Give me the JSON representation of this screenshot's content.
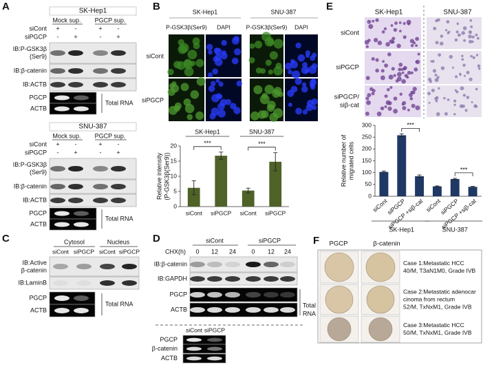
{
  "panels": {
    "A": {
      "label": "A",
      "blocks": [
        {
          "cell": "SK-Hep1",
          "headers": [
            "Mock sup.",
            "PGCP sup."
          ],
          "rows": [
            {
              "name": "siCont",
              "marks": [
                "+",
                "-",
                "+",
                "-"
              ]
            },
            {
              "name": "siPGCP",
              "marks": [
                "-",
                "+",
                "-",
                "+"
              ]
            }
          ],
          "blots": [
            [
              "IB:P-GSK3β",
              "(Ser9)"
            ],
            [
              "IB:β-catenin"
            ],
            [
              "IB:ACTB"
            ]
          ],
          "rna": [
            "PGCP",
            "ACTB"
          ],
          "rna_label": [
            "Total RNA"
          ]
        },
        {
          "cell": "SNU-387",
          "headers": [
            "Mock sup.",
            "PGCP sup."
          ],
          "rows": [
            {
              "name": "siCont",
              "marks": [
                "+",
                "-",
                "+",
                "-"
              ]
            },
            {
              "name": "siPGCP",
              "marks": [
                "-",
                "+",
                "-",
                "+"
              ]
            }
          ],
          "blots": [
            [
              "IB:P-GSK3β",
              "(Ser9)"
            ],
            [
              "IB:β-catenin"
            ],
            [
              "IB:ACTB"
            ]
          ],
          "rna": [
            "PGCP",
            "ACTB"
          ],
          "rna_label": [
            "Total RNA"
          ]
        }
      ]
    },
    "B": {
      "label": "B",
      "cells": [
        "SK-Hep1",
        "SNU-387"
      ],
      "stains": [
        "P-GSK3β(Ser9)",
        "DAPI",
        "P-GSK3β(Ser9)",
        "DAPI"
      ],
      "rows": [
        "siCont",
        "siPGCP"
      ]
    },
    "C": {
      "label": "C",
      "fractions": [
        "Cytosol",
        "Nucleus"
      ],
      "lanes": [
        "siCont",
        "siPGCP",
        "siCont",
        "siPGCP"
      ],
      "blots": [
        [
          "IB:Active",
          "β-catenin"
        ],
        [
          "IB:LaminB"
        ]
      ],
      "rna": [
        "PGCP",
        "ACTB"
      ],
      "rna_label": [
        "Total RNA"
      ]
    },
    "D": {
      "label": "D",
      "groups": [
        "siCont",
        "siPGCP"
      ],
      "chx_label": "CHX(h)",
      "times": [
        "0",
        "12",
        "24",
        "0",
        "12",
        "24"
      ],
      "blots": [
        [
          "IB:β-catenin"
        ],
        [
          "IB:GAPDH"
        ]
      ],
      "rna": [
        "PGCP",
        "ACTB"
      ],
      "rna_label": [
        "Total",
        "RNA"
      ],
      "lower_lanes": [
        "siCont",
        "siPGCP"
      ],
      "lower_rows": [
        "PGCP",
        "β-catenin",
        "ACTB"
      ]
    },
    "E": {
      "label": "E",
      "cells": [
        "SK-Hep1",
        "SNU-387"
      ],
      "rows": [
        [
          "siCont"
        ],
        [
          "siPGCP"
        ],
        [
          "siPGCP/",
          "siβ-cat"
        ]
      ]
    },
    "F": {
      "label": "F",
      "stains": [
        "PGCP",
        "β-catenin"
      ],
      "cases": [
        [
          "Case 1:Metastatic HCC",
          "40/M, T3aN1M0, Grade IVB"
        ],
        [
          "Case 2:Metastatic adenocar",
          "cinoma from rectum",
          "52/M, TxNxM1, Grade IVB"
        ],
        [
          "Case 3:Metastatic HCC",
          "50/M, TxNxM1, Grade IVB"
        ]
      ]
    }
  },
  "chart_data": [
    {
      "type": "bar",
      "y_label": [
        "Relative intensity",
        "(P-GSK3β(Ser9))"
      ],
      "groups": [
        "SK-Hep1",
        "SNU-387"
      ],
      "categories": [
        "siCont",
        "siPGCP",
        "siCont",
        "siPGCP"
      ],
      "values": [
        6.2,
        16.8,
        5.3,
        14.8
      ],
      "errors": [
        2.3,
        1.2,
        0.8,
        3.0
      ],
      "color": "#4f6228",
      "ylim": [
        0,
        20
      ],
      "yticks": [
        0,
        5,
        10,
        15,
        20
      ],
      "significance": [
        "***",
        "***"
      ]
    },
    {
      "type": "bar",
      "y_label": [
        "Relative number of",
        "migrated cells"
      ],
      "groups": [
        "SK-Hep1",
        "SNU-387"
      ],
      "categories": [
        "siCont",
        "siPGCP",
        "siPGCP +siβ-cat",
        "siCont",
        "siPGCP",
        "siPGCP +siβ-cat"
      ],
      "values": [
        103,
        258,
        85,
        42,
        73,
        40
      ],
      "errors": [
        4,
        6,
        5,
        2,
        3,
        2
      ],
      "color": "#1f3864",
      "ylim": [
        0,
        300
      ],
      "yticks": [
        0,
        50,
        100,
        150,
        200,
        250,
        300
      ],
      "significance": [
        "***",
        "***"
      ]
    }
  ]
}
